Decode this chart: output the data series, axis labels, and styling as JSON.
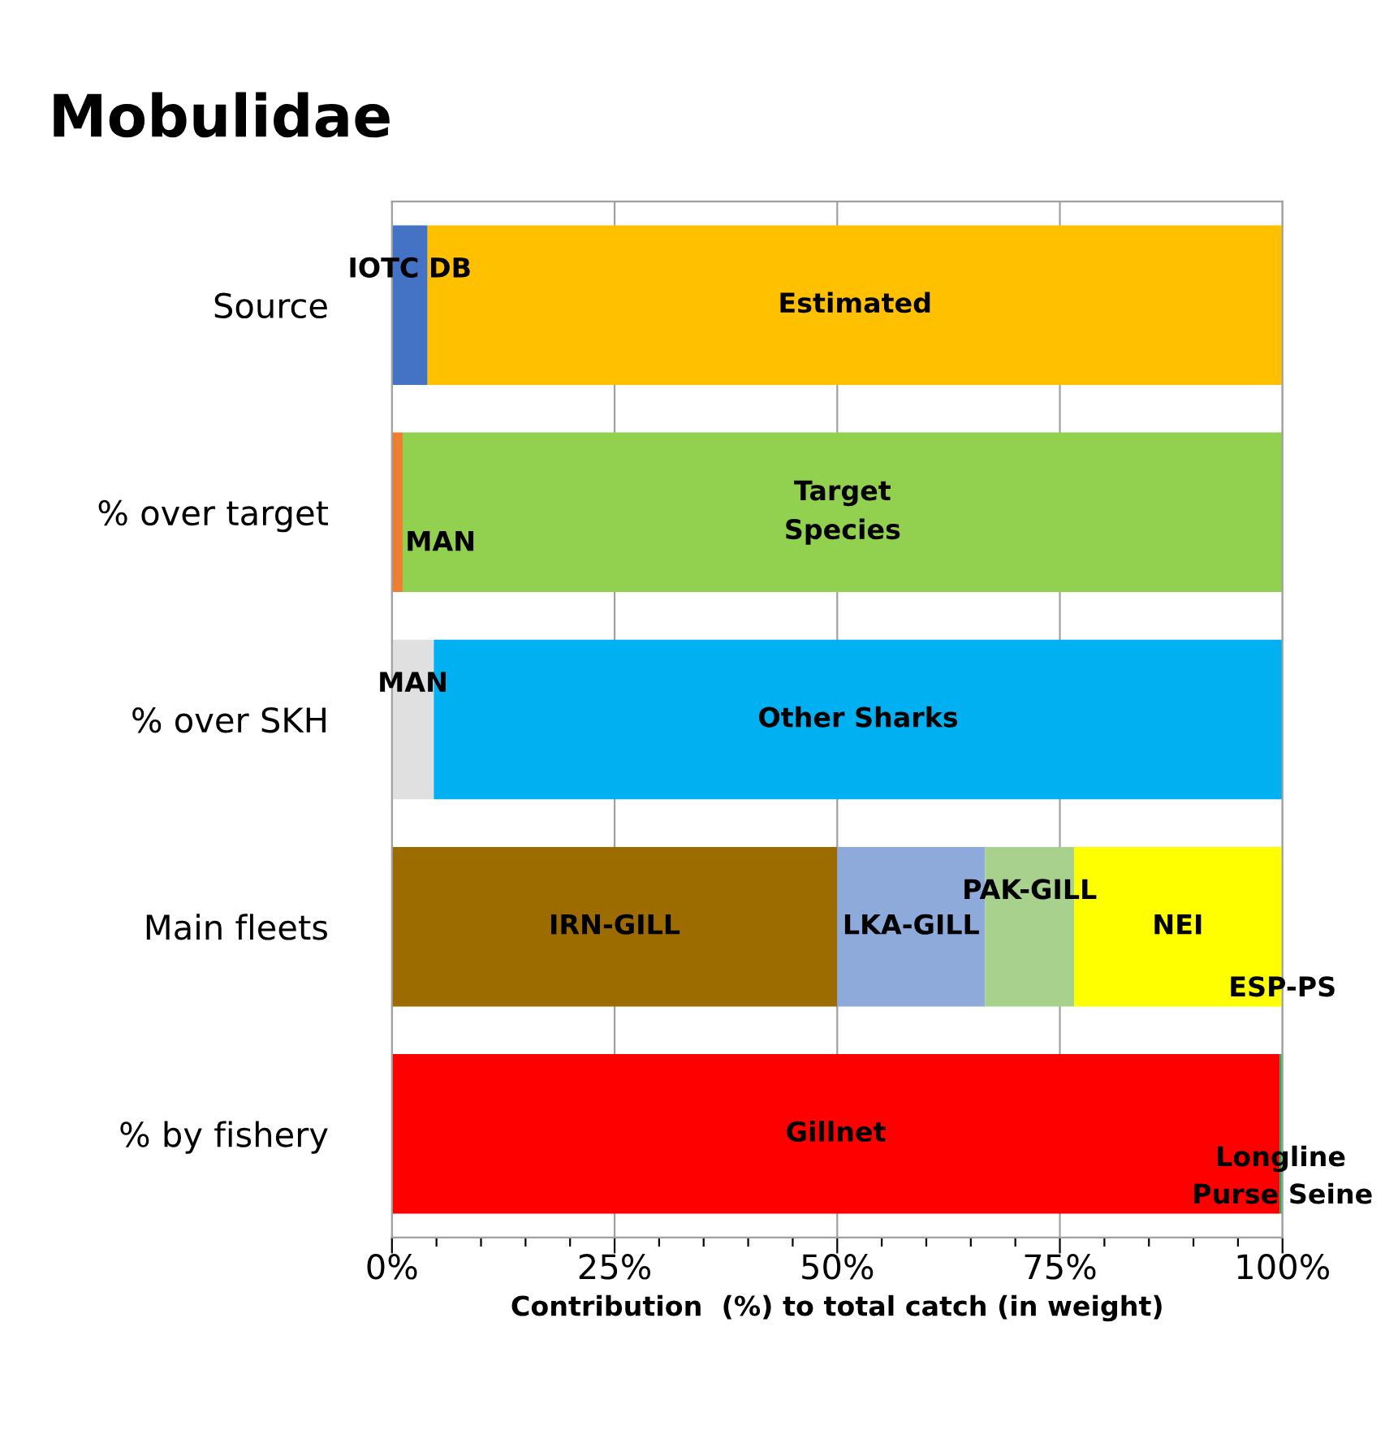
{
  "chart_data": {
    "type": "bar",
    "orientation": "horizontal",
    "stacked": true,
    "title": "Mobulidae",
    "xlabel": "Contribution  (%) to total catch (in weight)",
    "categories": [
      "Source",
      "% over target",
      "% over SKH",
      "Main fleets",
      "% by fishery"
    ],
    "series": [
      {
        "name": "IOTC DB",
        "color": "#4472c4",
        "values": [
          4,
          null,
          null,
          null,
          null
        ]
      },
      {
        "name": "Estimated",
        "color": "#ffc000",
        "values": [
          96,
          null,
          null,
          null,
          null
        ]
      },
      {
        "name": "MAN",
        "color": "#ed7d31",
        "values": [
          null,
          1.2,
          null,
          null,
          null
        ]
      },
      {
        "name": "Target\nSpecies",
        "color": "#92d050",
        "values": [
          null,
          98.8,
          null,
          null,
          null
        ]
      },
      {
        "name": "MAN",
        "color": "#e0e0e0",
        "values": [
          null,
          null,
          4.7,
          null,
          null
        ]
      },
      {
        "name": "Other Sharks",
        "color": "#00b0f0",
        "values": [
          null,
          null,
          95.3,
          null,
          null
        ]
      },
      {
        "name": "IRN-GILL",
        "color": "#9c6c00",
        "values": [
          null,
          null,
          null,
          50,
          null
        ]
      },
      {
        "name": "LKA-GILL",
        "color": "#8eaadb",
        "values": [
          null,
          null,
          null,
          16.6,
          null
        ]
      },
      {
        "name": "PAK-GILL",
        "color": "#a9d18e",
        "values": [
          null,
          null,
          null,
          10,
          null
        ]
      },
      {
        "name": "NEI",
        "color": "#ffff00",
        "values": [
          null,
          null,
          null,
          23.3,
          null
        ]
      },
      {
        "name": "Gillnet",
        "color": "#ff0000",
        "values": [
          null,
          null,
          null,
          null,
          99.7
        ]
      },
      {
        "name": "Longline",
        "color": "#00b050",
        "values": [
          null,
          null,
          null,
          null,
          0.2
        ]
      }
    ],
    "annotations": [
      {
        "text": "ESP-PS",
        "x": 100,
        "y": "Main fleets"
      },
      {
        "text": "Purse Seine",
        "x": 100,
        "y": "% by fishery"
      }
    ],
    "xlim": [
      0,
      100
    ],
    "xticks": [
      {
        "value": 0,
        "label": "0%"
      },
      {
        "value": 5,
        "label": null
      },
      {
        "value": 10,
        "label": null
      },
      {
        "value": 15,
        "label": null
      },
      {
        "value": 20,
        "label": null
      },
      {
        "value": 25,
        "label": "25%"
      },
      {
        "value": 30,
        "label": null
      },
      {
        "value": 35,
        "label": null
      },
      {
        "value": 40,
        "label": null
      },
      {
        "value": 45,
        "label": null
      },
      {
        "value": 50,
        "label": "50%"
      },
      {
        "value": 55,
        "label": null
      },
      {
        "value": 60,
        "label": null
      },
      {
        "value": 65,
        "label": null
      },
      {
        "value": 70,
        "label": null
      },
      {
        "value": 75,
        "label": "75%"
      },
      {
        "value": 80,
        "label": null
      },
      {
        "value": 85,
        "label": null
      },
      {
        "value": 90,
        "label": null
      },
      {
        "value": 95,
        "label": null
      },
      {
        "value": 100,
        "label": "100%"
      }
    ],
    "grid": "x",
    "legend": false
  }
}
